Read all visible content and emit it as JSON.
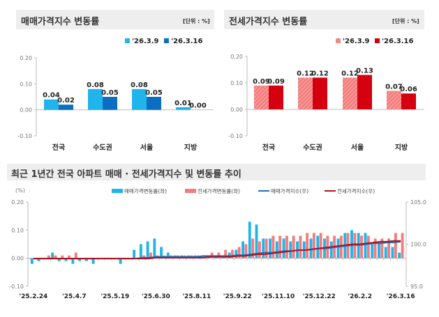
{
  "colors": {
    "sale_light": "#1fb4ea",
    "sale_dark": "#0a6fc2",
    "jeonse_light": "#f47c7c",
    "jeonse_dark": "#d4000f",
    "sale_index_line": "#1f6fb8",
    "jeonse_index_line": "#b0101c"
  },
  "chart_data": [
    {
      "type": "bar",
      "title": "매매가격지수 변동률",
      "unit": "[단위 : %]",
      "categories": [
        "전국",
        "수도권",
        "서울",
        "지방"
      ],
      "series": [
        {
          "name": "'26.3.9",
          "values": [
            0.04,
            0.08,
            0.08,
            0.01
          ]
        },
        {
          "name": "'26.3.16",
          "values": [
            0.02,
            0.05,
            0.05,
            0.0
          ]
        }
      ],
      "ylim": [
        -0.1,
        0.2
      ],
      "yticks": [
        "0.20",
        "0.10",
        "0.00",
        "-0.10"
      ],
      "labels": [
        [
          "0.04",
          "0.08",
          "0.08",
          "0.01"
        ],
        [
          "0.02",
          "0.05",
          "0.05",
          "0.00"
        ]
      ]
    },
    {
      "type": "bar",
      "title": "전세가격지수 변동률",
      "unit": "[단위 : %]",
      "categories": [
        "전국",
        "수도권",
        "서울",
        "지방"
      ],
      "series": [
        {
          "name": "'26.3.9",
          "values": [
            0.09,
            0.12,
            0.12,
            0.07
          ]
        },
        {
          "name": "'26.3.16",
          "values": [
            0.09,
            0.12,
            0.13,
            0.06
          ]
        }
      ],
      "ylim": [
        -0.1,
        0.2
      ],
      "yticks": [
        "0.20",
        "0.10",
        "0.00",
        "-0.10"
      ],
      "labels": [
        [
          "0.09",
          "0.12",
          "0.12",
          "0.07"
        ],
        [
          "0.09",
          "0.12",
          "0.13",
          "0.06"
        ]
      ]
    },
    {
      "type": "bar+line",
      "title": "최근 1년간 전국 아파트 매매 · 전세가격지수 및 변동률 추이",
      "ylabel": "(%)",
      "xticks": [
        "'25.2.24",
        "'25.4.7",
        "'25.5.19",
        "'25.6.30",
        "'25.8.11",
        "'25.9.22",
        "'25.11.10",
        "'25.12.22",
        "'26.2.2",
        "'26.3.16"
      ],
      "ylim": [
        -0.1,
        0.2
      ],
      "yticks": [
        "0.20",
        "0.10",
        "0.00",
        "-0.10"
      ],
      "y2lim": [
        95.0,
        105.0
      ],
      "y2ticks": [
        "105.0",
        "100.0",
        "95.0"
      ],
      "series": [
        {
          "name": "매매가격변동률(좌)",
          "values": [
            -0.02,
            -0.01,
            0.0,
            0.02,
            -0.01,
            -0.01,
            -0.02,
            -0.01,
            -0.01,
            -0.02,
            0.0,
            0.0,
            0.0,
            -0.02,
            0.0,
            0.03,
            0.05,
            0.06,
            0.07,
            0.04,
            0.02,
            0.01,
            0.01,
            0.01,
            0.01,
            0.01,
            0.01,
            0.01,
            0.01,
            0.02,
            0.03,
            0.06,
            0.13,
            0.12,
            0.07,
            0.07,
            0.06,
            0.07,
            0.06,
            0.06,
            0.06,
            0.07,
            0.08,
            0.07,
            0.06,
            0.07,
            0.09,
            0.1,
            0.09,
            0.09,
            0.05,
            0.06,
            0.04,
            0.04,
            0.02
          ]
        },
        {
          "name": "전세가격변동률(좌)",
          "values": [
            0.0,
            0.0,
            0.01,
            0.01,
            0.01,
            0.01,
            0.02,
            0.0,
            0.0,
            0.0,
            0.0,
            0.0,
            0.0,
            0.0,
            0.0,
            0.0,
            0.01,
            0.02,
            0.01,
            0.01,
            0.01,
            0.01,
            0.01,
            0.01,
            0.01,
            0.01,
            0.02,
            0.02,
            0.03,
            0.03,
            0.04,
            0.05,
            0.07,
            0.06,
            0.07,
            0.08,
            0.08,
            0.08,
            0.08,
            0.08,
            0.09,
            0.09,
            0.09,
            0.08,
            0.08,
            0.08,
            0.09,
            0.09,
            0.08,
            0.08,
            0.07,
            0.07,
            0.07,
            0.09,
            0.09
          ]
        },
        {
          "name": "매매가격지수(우)",
          "values": [
            98.3,
            98.3,
            98.3,
            98.3,
            98.3,
            98.3,
            98.3,
            98.3,
            98.3,
            98.3,
            98.3,
            98.3,
            98.3,
            98.3,
            98.3,
            98.3,
            98.4,
            98.4,
            98.5,
            98.5,
            98.5,
            98.5,
            98.5,
            98.5,
            98.5,
            98.6,
            98.6,
            98.6,
            98.6,
            98.6,
            98.7,
            98.7,
            98.8,
            98.9,
            99.0,
            99.0,
            99.1,
            99.2,
            99.2,
            99.3,
            99.3,
            99.4,
            99.5,
            99.5,
            99.6,
            99.7,
            99.8,
            99.9,
            99.9,
            100.0,
            100.1,
            100.1,
            100.2,
            100.2,
            100.3
          ]
        },
        {
          "name": "전세가격지수(우)",
          "values": [
            98.3,
            98.3,
            98.3,
            98.3,
            98.3,
            98.3,
            98.3,
            98.3,
            98.3,
            98.3,
            98.3,
            98.3,
            98.3,
            98.3,
            98.3,
            98.3,
            98.3,
            98.3,
            98.4,
            98.4,
            98.4,
            98.4,
            98.4,
            98.4,
            98.4,
            98.4,
            98.5,
            98.5,
            98.5,
            98.5,
            98.6,
            98.6,
            98.7,
            98.8,
            98.8,
            98.9,
            99.0,
            99.1,
            99.2,
            99.3,
            99.3,
            99.4,
            99.5,
            99.6,
            99.7,
            99.8,
            99.9,
            100.0,
            100.0,
            100.1,
            100.2,
            100.3,
            100.3,
            100.4,
            100.4
          ]
        }
      ]
    }
  ]
}
